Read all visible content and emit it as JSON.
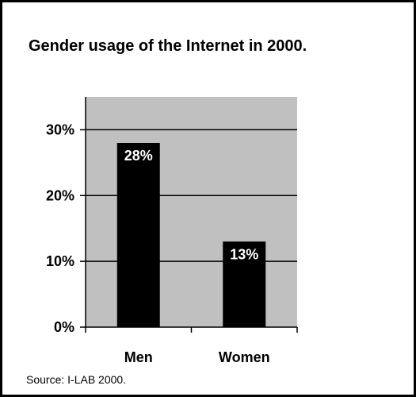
{
  "chart_data": {
    "type": "bar",
    "title": "Gender usage of the Internet in 2000.",
    "categories": [
      "Men",
      "Women"
    ],
    "values": [
      28,
      13
    ],
    "data_labels": [
      "28%",
      "13%"
    ],
    "ylim": [
      0,
      35
    ],
    "y_ticks": [
      0,
      10,
      20,
      30
    ],
    "y_tick_labels": [
      "0%",
      "10%",
      "20%",
      "30%"
    ],
    "xlabel": "",
    "ylabel": "",
    "grid": true,
    "colors": {
      "bar": "#000000",
      "plot_background": "#c0c0c0",
      "data_label": "#ffffff"
    }
  },
  "source": "Source: I-LAB 2000."
}
